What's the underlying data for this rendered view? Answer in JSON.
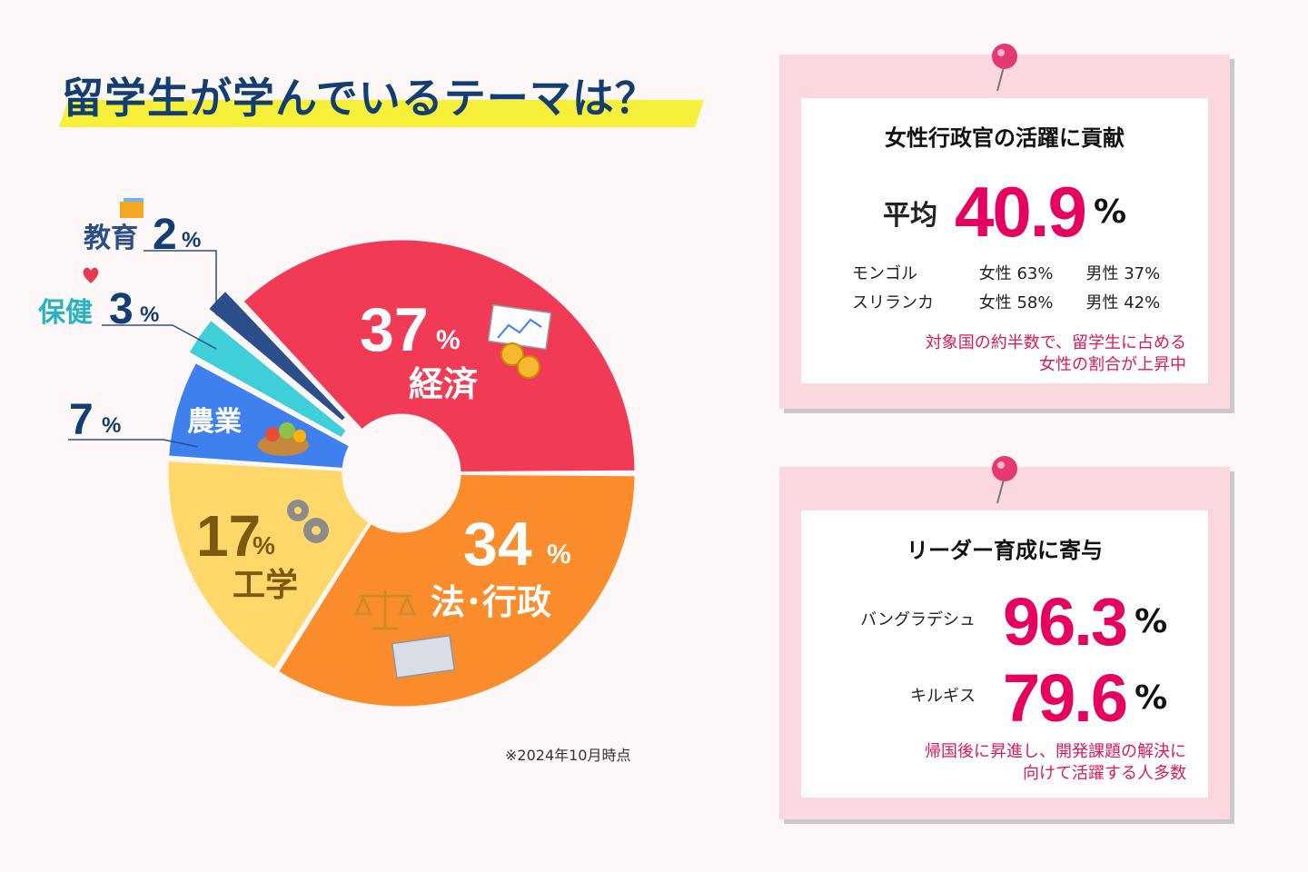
{
  "title": "留学生が学んでいるテーマは？",
  "note": "※2024年10月時点",
  "chart_data": {
    "type": "pie",
    "categories": [
      "経済",
      "法・行政",
      "工学",
      "農業",
      "保健",
      "教育"
    ],
    "values": [
      37,
      34,
      17,
      7,
      3,
      2
    ],
    "unit": "%",
    "colors": [
      "#f13a56",
      "#fb8c2b",
      "#ffd869",
      "#3f80ef",
      "#3ecfd8",
      "#2c4f8c"
    ]
  },
  "slices": {
    "economy": {
      "value": "37",
      "label": "経済"
    },
    "law": {
      "value": "34",
      "label": "法･行政"
    },
    "engineering": {
      "value": "17",
      "label": "工学"
    },
    "agriculture": {
      "value": "7",
      "label": "農業"
    },
    "health": {
      "value": "3",
      "label": "保健"
    },
    "education": {
      "value": "2",
      "label": "教育"
    },
    "pct_sign": "%"
  },
  "card1": {
    "heading": "女性行政官の活躍に貢献",
    "avg_label": "平均",
    "avg_value": "40.9",
    "pct": "%",
    "rows": [
      {
        "country": "モンゴル",
        "female": "女性  63%",
        "male": "男性  37%"
      },
      {
        "country": "スリランカ",
        "female": "女性  58%",
        "male": "男性  42%"
      }
    ],
    "note": "対象国の約半数で、留学生に占める\n女性の割合が上昇中"
  },
  "card2": {
    "heading": "リーダー育成に寄与",
    "rows": [
      {
        "country": "バングラデシュ",
        "value": "96.3"
      },
      {
        "country": "キルギス",
        "value": "79.6"
      }
    ],
    "pct": "%",
    "note": "帰国後に昇進し、開発課題の解決に\n向けて活躍する人多数"
  }
}
